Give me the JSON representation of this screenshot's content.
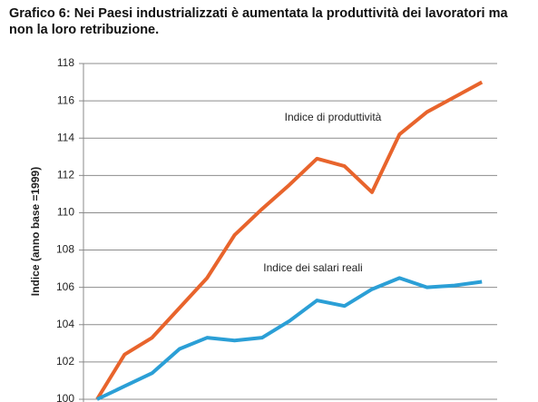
{
  "chart_data": {
    "type": "line",
    "title": "Grafico 6: Nei Paesi industrializzati è aumentata la produttività dei lavoratori ma non la loro retribuzione.",
    "y_label": "Indice (anno base =1999)",
    "series": [
      {
        "name": "Indice di produttività",
        "color": "#e8642c",
        "values": [
          100,
          102.4,
          103.3,
          104.9,
          106.5,
          108.8,
          110.2,
          111.5,
          112.9,
          112.5,
          111.1,
          114.2,
          115.4,
          116.2,
          117
        ]
      },
      {
        "name": "Indice dei salari reali",
        "color": "#2b9fd6",
        "values": [
          100,
          100.7,
          101.4,
          102.7,
          103.3,
          103.15,
          103.3,
          104.2,
          105.3,
          105.0,
          105.9,
          106.5,
          106.0,
          106.1,
          106.3
        ]
      }
    ],
    "ylim": [
      100,
      118
    ],
    "yticks": [
      100,
      102,
      104,
      106,
      108,
      110,
      112,
      114,
      116,
      118
    ],
    "grid": true
  }
}
